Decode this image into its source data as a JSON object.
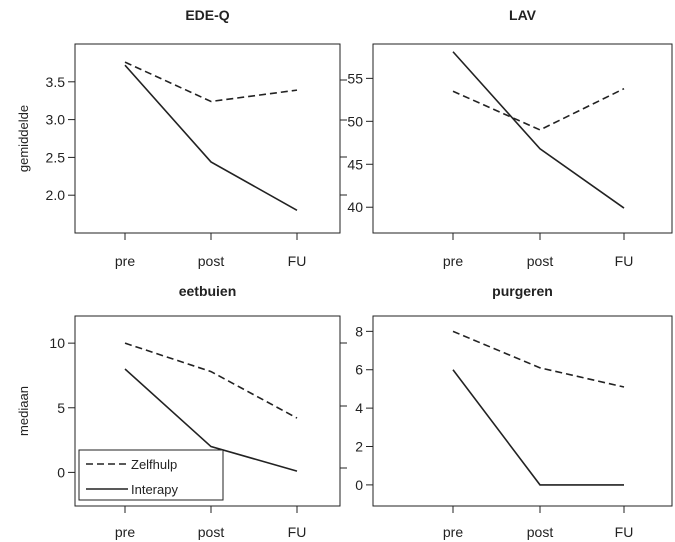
{
  "chart_data": [
    {
      "type": "line",
      "title": "EDE-Q",
      "ylabel": "gemiddelde",
      "categories": [
        "pre",
        "post",
        "FU"
      ],
      "yticks": [
        "2.0",
        "2.5",
        "3.0",
        "3.5"
      ],
      "ylim": [
        1.5,
        4.0
      ],
      "series": [
        {
          "name": "Zelfhulp",
          "values": [
            3.76,
            3.24,
            3.39
          ]
        },
        {
          "name": "Interapy",
          "values": [
            3.72,
            2.44,
            1.8
          ]
        }
      ]
    },
    {
      "type": "line",
      "title": "LAV",
      "ylabel": "",
      "categories": [
        "pre",
        "post",
        "FU"
      ],
      "yticks": [
        "40",
        "45",
        "50",
        "55"
      ],
      "ylim": [
        37,
        59
      ],
      "series": [
        {
          "name": "Zelfhulp",
          "values": [
            53.5,
            49.0,
            53.8
          ]
        },
        {
          "name": "Interapy",
          "values": [
            58.1,
            46.8,
            39.9
          ]
        }
      ]
    },
    {
      "type": "line",
      "title": "eetbuien",
      "ylabel": "mediaan",
      "categories": [
        "pre",
        "post",
        "FU"
      ],
      "yticks": [
        "0",
        "5",
        "10"
      ],
      "ylim": [
        -2.6,
        12.1
      ],
      "series": [
        {
          "name": "Zelfhulp",
          "values": [
            10.0,
            7.8,
            4.2
          ]
        },
        {
          "name": "Interapy",
          "values": [
            8.0,
            2.0,
            0.1
          ]
        }
      ]
    },
    {
      "type": "line",
      "title": "purgeren",
      "ylabel": "",
      "categories": [
        "pre",
        "post",
        "FU"
      ],
      "yticks": [
        "0",
        "2",
        "4",
        "6",
        "8"
      ],
      "ylim": [
        -1.1,
        8.8
      ],
      "series": [
        {
          "name": "Zelfhulp",
          "values": [
            8.0,
            6.1,
            5.1
          ]
        },
        {
          "name": "Interapy",
          "values": [
            6.0,
            0.0,
            0.0
          ]
        }
      ]
    }
  ],
  "legend": {
    "items": [
      {
        "label": "Zelfhulp",
        "style": "dashed"
      },
      {
        "label": "Interapy",
        "style": "solid"
      }
    ]
  },
  "colors": {
    "line": "#222222",
    "axis": "#222222",
    "background": "#ffffff"
  }
}
